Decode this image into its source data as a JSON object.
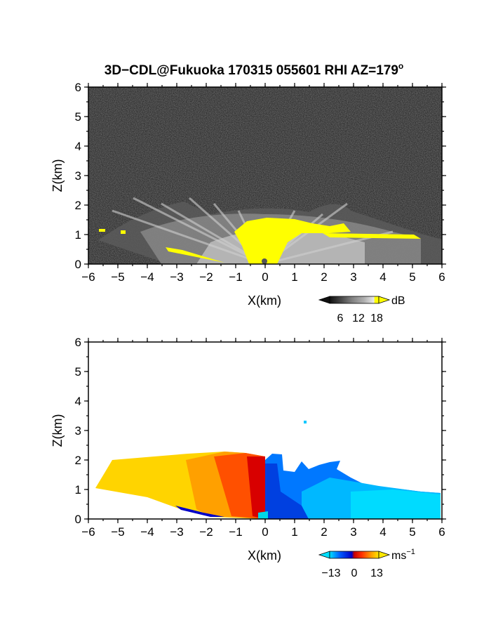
{
  "figure": {
    "title": "3D−CDL@Fukuoka 170315 055601 RHI AZ=179",
    "title_superscript": "o"
  },
  "chart_data": [
    {
      "type": "heatmap",
      "panel": "top",
      "quantity": "SNR",
      "xlabel": "X(km)",
      "ylabel": "Z(km)",
      "xlim": [
        -6,
        6
      ],
      "ylim": [
        0,
        6
      ],
      "xticks": [
        "−6",
        "−5",
        "−4",
        "−3",
        "−2",
        "−1",
        "0",
        "1",
        "2",
        "3",
        "4",
        "5",
        "6"
      ],
      "yticks": [
        "0",
        "1",
        "2",
        "3",
        "4",
        "5",
        "6"
      ],
      "grid": false,
      "colorbar": {
        "unit": "dB",
        "ticks": [
          "6",
          "12",
          "18"
        ],
        "range": [
          0,
          20
        ],
        "colors": [
          "#101010",
          "#404040",
          "#707070",
          "#a0a0a0",
          "#d8d8d8",
          "#ffff00"
        ]
      },
      "features": {
        "noise_floor_color": "#2a2a2a",
        "boundary_layer_top_km": 1.6,
        "high_snr_color": "#ffff00"
      }
    },
    {
      "type": "heatmap",
      "panel": "bottom",
      "quantity": "Doppler velocity",
      "xlabel": "X(km)",
      "ylabel": "Z(km)",
      "xlim": [
        -6,
        6
      ],
      "ylim": [
        0,
        6
      ],
      "xticks": [
        "−6",
        "−5",
        "−4",
        "−3",
        "−2",
        "−1",
        "0",
        "1",
        "2",
        "3",
        "4",
        "5",
        "6"
      ],
      "yticks": [
        "0",
        "1",
        "2",
        "3",
        "4",
        "5",
        "6"
      ],
      "grid": false,
      "colorbar": {
        "unit": "ms",
        "unit_superscript": "−1",
        "ticks": [
          "−13",
          "0",
          "13"
        ],
        "range": [
          -13,
          13
        ],
        "colors": [
          "#00d8ff",
          "#0050ff",
          "#0000cc",
          "#cc0000",
          "#ff3000",
          "#ff9000",
          "#ffe000"
        ]
      },
      "features": {
        "negative_side": "x > 0 (toward)",
        "positive_side": "x < 0 (away)",
        "echo_top_km": 2.2
      }
    }
  ]
}
